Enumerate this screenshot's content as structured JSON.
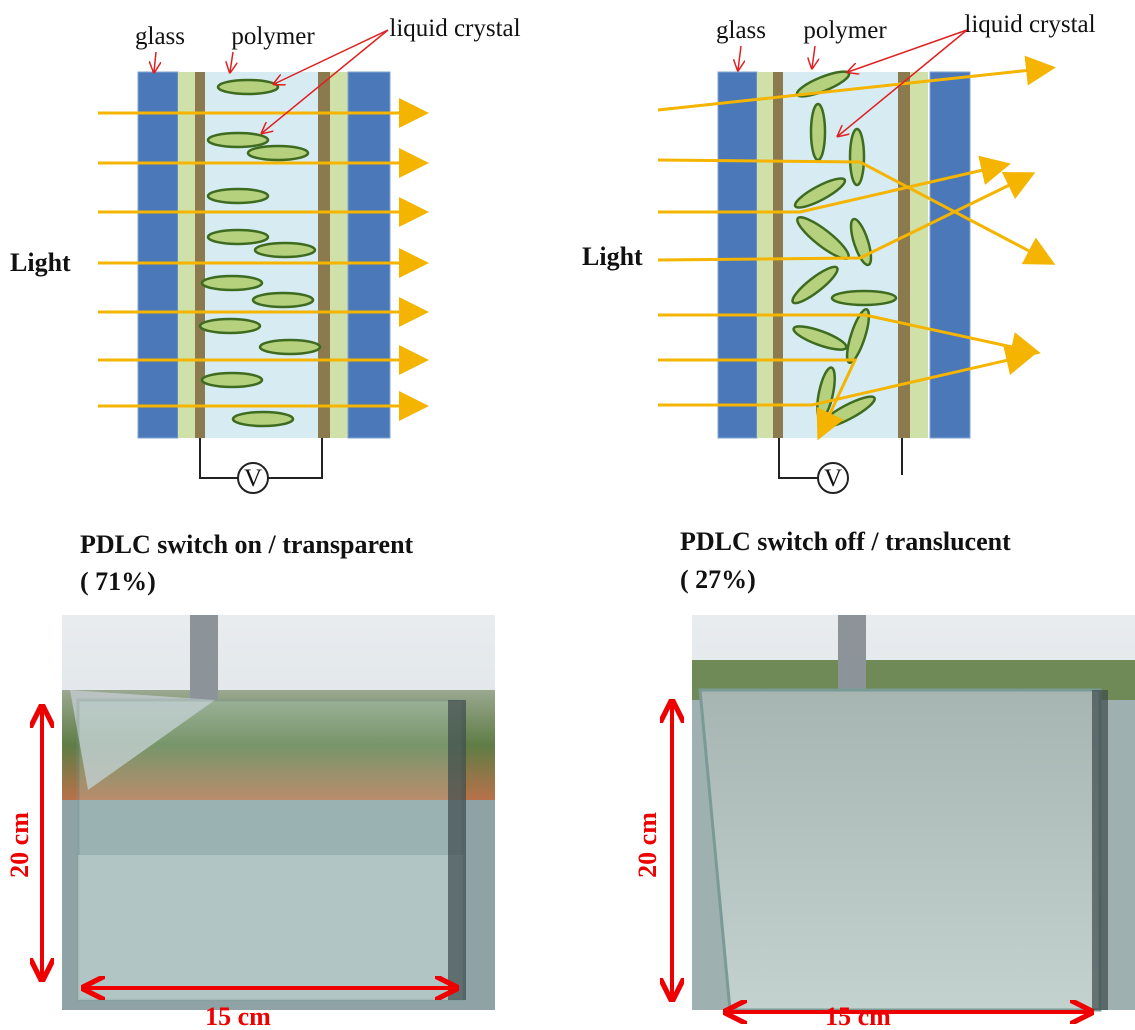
{
  "panels": [
    {
      "labels": {
        "glass": "glass",
        "polymer": "polymer",
        "liquid_crystal": "liquid crystal"
      },
      "light": "Light",
      "voltmeter": "V",
      "caption": "PDLC switch on / transparent",
      "percent": "( 71%)",
      "height_label": "20 cm",
      "width_label": "15 cm"
    },
    {
      "labels": {
        "glass": "glass",
        "polymer": "polymer",
        "liquid_crystal": "liquid crystal"
      },
      "light": "Light",
      "voltmeter": "V",
      "caption": "PDLC switch off / translucent",
      "percent": "( 27%)",
      "height_label": "20 cm",
      "width_label": "15 cm"
    }
  ]
}
